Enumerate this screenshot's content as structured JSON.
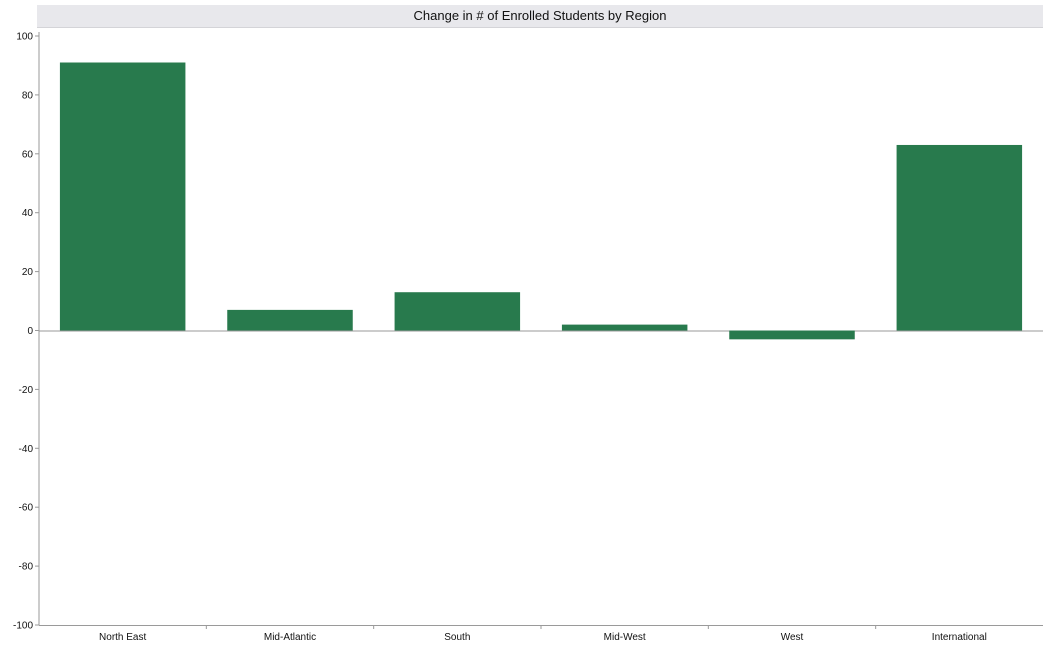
{
  "chart_data": {
    "type": "bar",
    "title": "Change in # of Enrolled Students by Region",
    "xlabel": "",
    "ylabel": "",
    "categories": [
      "North East",
      "Mid-Atlantic",
      "South",
      "Mid-West",
      "West",
      "International"
    ],
    "values": [
      91,
      7,
      13,
      2,
      -3,
      63
    ],
    "ylim": [
      -100,
      100
    ],
    "yticks": [
      100,
      80,
      60,
      40,
      20,
      0,
      -20,
      -40,
      -60,
      -80,
      -100
    ],
    "grid": false,
    "legend": "none",
    "bar_color": "#287a4d"
  }
}
